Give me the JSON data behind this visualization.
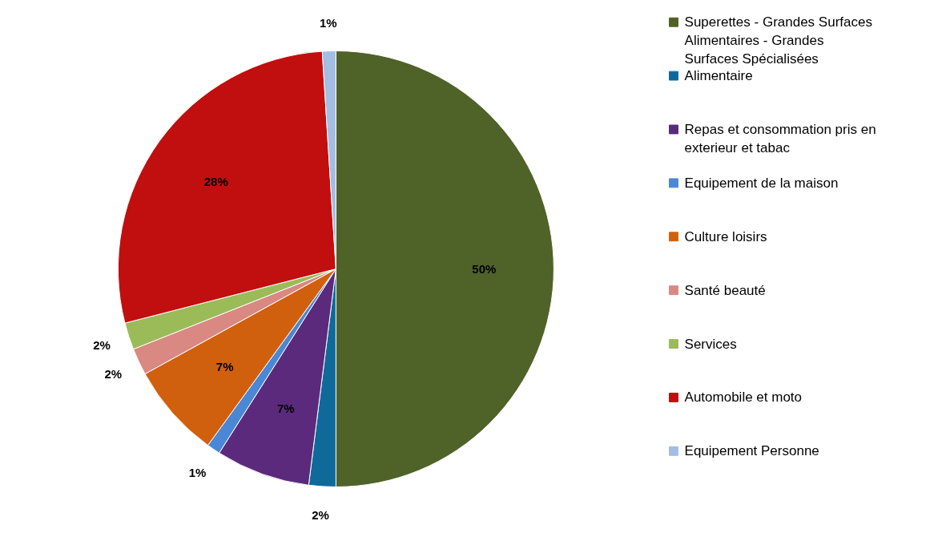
{
  "chart_data": {
    "type": "pie",
    "categories": [
      "Superettes - Grandes Surfaces Alimentaires - Grandes Surfaces Spécialisées",
      "Alimentaire",
      "Repas et consommation pris en exterieur et tabac",
      "Equipement de la maison",
      "Culture loisirs",
      "Santé beauté",
      "Services",
      "Automobile et moto",
      "Equipement Personne"
    ],
    "values": [
      50,
      2,
      7,
      1,
      7,
      2,
      2,
      28,
      1
    ],
    "value_labels": [
      "50%",
      "2%",
      "7%",
      "1%",
      "7%",
      "2%",
      "2%",
      "28%",
      "1%"
    ],
    "colors": [
      "#4f6228",
      "#0f6a9a",
      "#5b2a7c",
      "#4a87d6",
      "#d0600e",
      "#d98882",
      "#9bbb59",
      "#c00f0e",
      "#a3bde3"
    ],
    "legend": "right"
  }
}
